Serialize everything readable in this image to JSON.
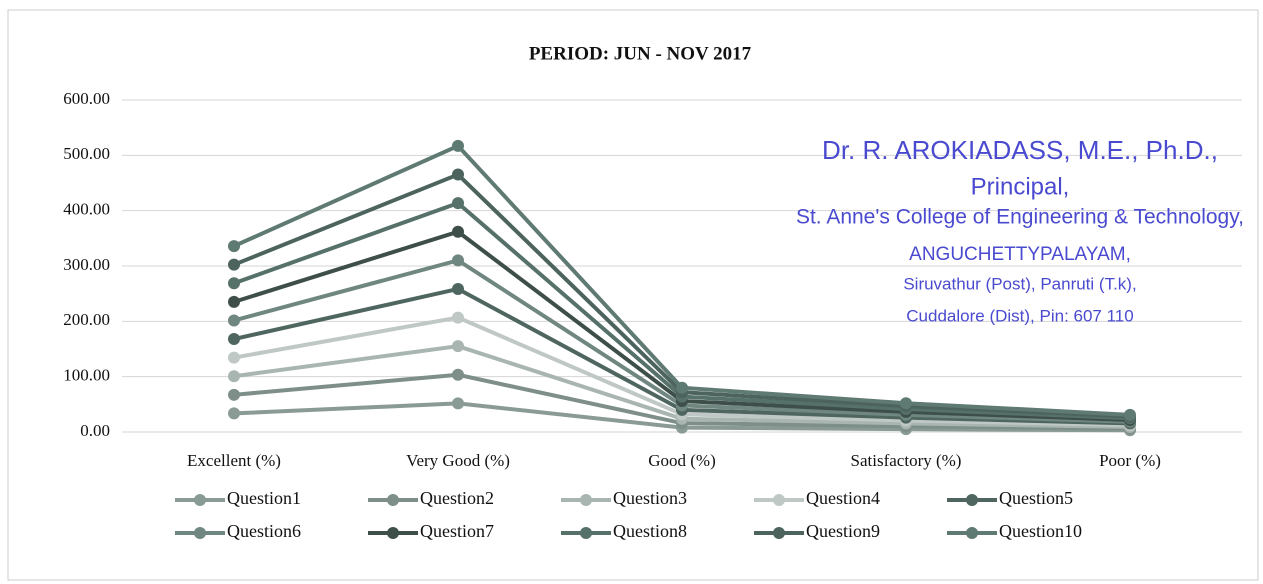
{
  "chart_data": {
    "type": "line",
    "stacked": true,
    "title": "PERIOD: JUN - NOV 2017",
    "categories": [
      "Excellent (%)",
      "Very Good (%)",
      "Good (%)",
      "Satisfactory (%)",
      "Poor (%)"
    ],
    "series": [
      {
        "name": "Question1",
        "color": "#8a9a94",
        "values": [
          33.6,
          51.7,
          8.0,
          5.2,
          3.1
        ]
      },
      {
        "name": "Question2",
        "color": "#7d8f88",
        "values": [
          33.6,
          51.7,
          8.0,
          5.2,
          3.1
        ]
      },
      {
        "name": "Question3",
        "color": "#a9b5b0",
        "values": [
          33.6,
          51.7,
          8.0,
          5.2,
          3.1
        ]
      },
      {
        "name": "Question4",
        "color": "#c0c8c5",
        "values": [
          33.6,
          51.7,
          8.0,
          5.2,
          3.1
        ]
      },
      {
        "name": "Question5",
        "color": "#4f6660",
        "values": [
          33.6,
          51.7,
          8.0,
          5.2,
          3.1
        ]
      },
      {
        "name": "Question6",
        "color": "#6f8780",
        "values": [
          33.6,
          51.7,
          8.0,
          5.2,
          3.1
        ]
      },
      {
        "name": "Question7",
        "color": "#3e4f4a",
        "values": [
          33.6,
          51.7,
          8.0,
          5.2,
          3.1
        ]
      },
      {
        "name": "Question8",
        "color": "#56706a",
        "values": [
          33.6,
          51.7,
          8.0,
          5.2,
          3.1
        ]
      },
      {
        "name": "Question9",
        "color": "#4d645e",
        "values": [
          33.6,
          51.7,
          8.0,
          5.2,
          3.1
        ]
      },
      {
        "name": "Question10",
        "color": "#5f7a73",
        "values": [
          33.6,
          51.7,
          8.0,
          5.2,
          3.1
        ]
      }
    ],
    "ylim": [
      0,
      600
    ],
    "yticks": [
      {
        "value": 0,
        "label": "0.00"
      },
      {
        "value": 100,
        "label": "100.00"
      },
      {
        "value": 200,
        "label": "200.00"
      },
      {
        "value": 300,
        "label": "300.00"
      },
      {
        "value": 400,
        "label": "400.00"
      },
      {
        "value": 500,
        "label": "500.00"
      },
      {
        "value": 600,
        "label": "600.00"
      }
    ],
    "grid": true,
    "legend": "bottom",
    "stamp": [
      "Dr. R. AROKIADASS, M.E., Ph.D.,",
      "Principal,",
      "St. Anne's College of Engineering & Technology,",
      "ANGUCHETTYPALAYAM,",
      "Siruvathur (Post), Panruti (T.k),",
      "Cuddalore (Dist), Pin: 607 110"
    ]
  }
}
